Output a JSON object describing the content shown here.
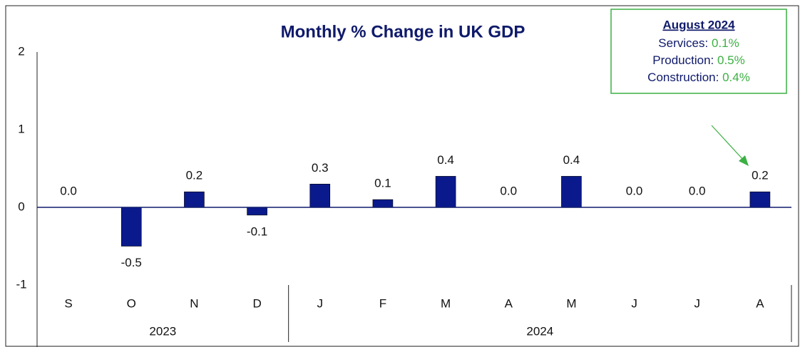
{
  "chart_data": {
    "type": "bar",
    "title": "Monthly % Change in UK GDP",
    "categories": [
      "S",
      "O",
      "N",
      "D",
      "J",
      "F",
      "M",
      "A",
      "M",
      "J",
      "J",
      "A"
    ],
    "category_groups": [
      "2023",
      null,
      null,
      null,
      "2024",
      null,
      null,
      null,
      null,
      null,
      null,
      null
    ],
    "values": [
      0,
      -0.5,
      0.2,
      -0.1,
      0.3,
      0.1,
      0.4,
      0,
      0.4,
      0,
      0,
      0.2
    ],
    "value_labels": [
      "0.0",
      "-0.5",
      "0.2",
      "-0.1",
      "0.3",
      "0.1",
      "0.4",
      "0.0",
      "0.4",
      "0.0",
      "0.0",
      "0.2"
    ],
    "color": "#0a1a8c",
    "ylim": [
      -1,
      2
    ],
    "yticks": [
      -1,
      0,
      1,
      2
    ],
    "grid": false,
    "annotation": {
      "title": "August 2024",
      "color": "#3cb043",
      "items": [
        {
          "label": "Services: ",
          "value": "0.1%"
        },
        {
          "label": "Production: ",
          "value": "0.5%"
        },
        {
          "label": "Construction: ",
          "value": "0.4%"
        }
      ]
    }
  }
}
